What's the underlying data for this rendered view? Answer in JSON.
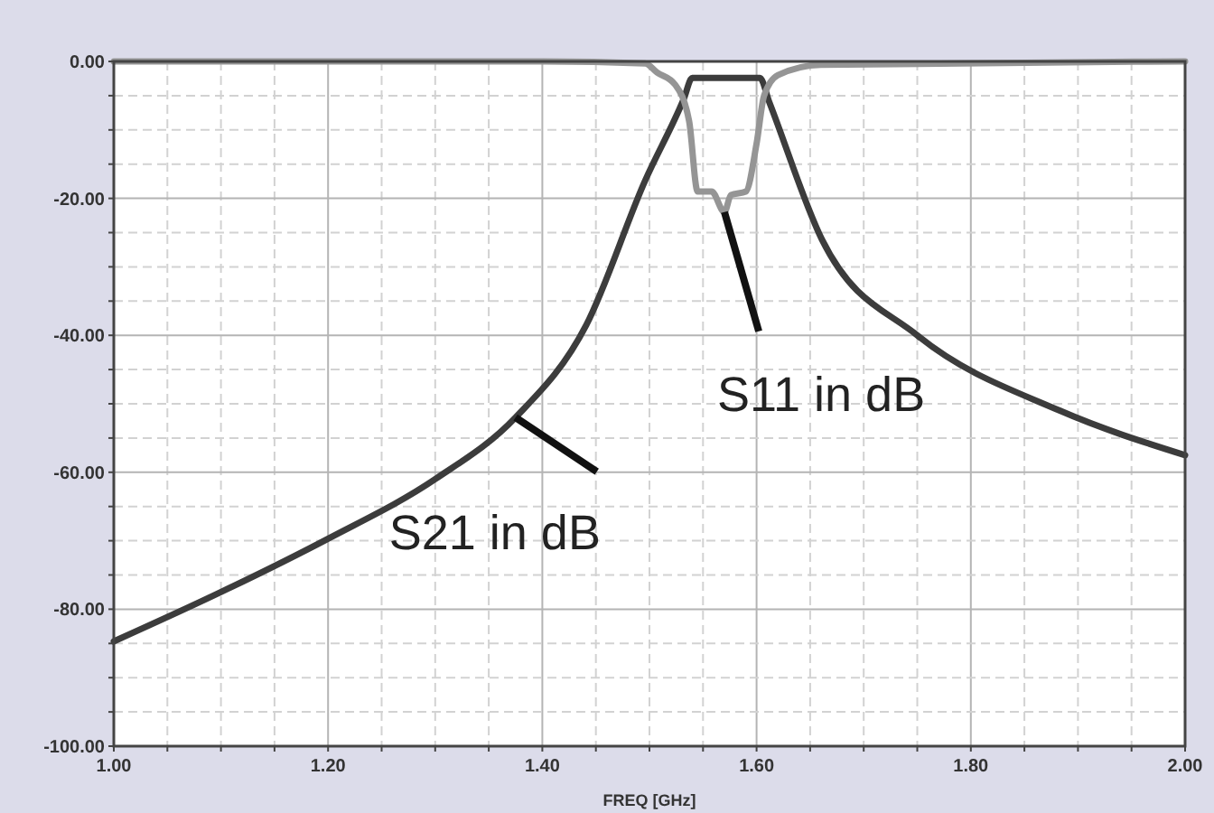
{
  "chart_data": {
    "type": "line",
    "xlabel": "FREQ [GHz]",
    "xlim": [
      1,
      2
    ],
    "ylim": [
      -100,
      0
    ],
    "xticks": [
      {
        "value": 1,
        "label": "1.00"
      },
      {
        "value": 1.05,
        "label": null
      },
      {
        "value": 1.1,
        "label": null
      },
      {
        "value": 1.15,
        "label": null
      },
      {
        "value": 1.2,
        "label": "1.20"
      },
      {
        "value": 1.25,
        "label": null
      },
      {
        "value": 1.3,
        "label": null
      },
      {
        "value": 1.35,
        "label": null
      },
      {
        "value": 1.4,
        "label": "1.40"
      },
      {
        "value": 1.45,
        "label": null
      },
      {
        "value": 1.5,
        "label": null
      },
      {
        "value": 1.55,
        "label": null
      },
      {
        "value": 1.6,
        "label": "1.60"
      },
      {
        "value": 1.65,
        "label": null
      },
      {
        "value": 1.7,
        "label": null
      },
      {
        "value": 1.75,
        "label": null
      },
      {
        "value": 1.8,
        "label": "1.80"
      },
      {
        "value": 1.85,
        "label": null
      },
      {
        "value": 1.9,
        "label": null
      },
      {
        "value": 1.95,
        "label": null
      },
      {
        "value": 2,
        "label": "2.00"
      }
    ],
    "yticks": [
      {
        "value": -100,
        "label": "-100.00"
      },
      {
        "value": -95,
        "label": null
      },
      {
        "value": -90,
        "label": null
      },
      {
        "value": -85,
        "label": null
      },
      {
        "value": -80,
        "label": "-80.00"
      },
      {
        "value": -75,
        "label": null
      },
      {
        "value": -70,
        "label": null
      },
      {
        "value": -65,
        "label": null
      },
      {
        "value": -60,
        "label": "-60.00"
      },
      {
        "value": -55,
        "label": null
      },
      {
        "value": -50,
        "label": null
      },
      {
        "value": -45,
        "label": null
      },
      {
        "value": -40,
        "label": "-40.00"
      },
      {
        "value": -35,
        "label": null
      },
      {
        "value": -30,
        "label": null
      },
      {
        "value": -25,
        "label": null
      },
      {
        "value": -20,
        "label": "-20.00"
      },
      {
        "value": -15,
        "label": null
      },
      {
        "value": -10,
        "label": null
      },
      {
        "value": -5,
        "label": null
      },
      {
        "value": 0,
        "label": "0.00"
      }
    ],
    "grid": true,
    "line_style": "solid",
    "marker": "none",
    "series": [
      {
        "color": "#3c3c3c",
        "x": [
          1,
          1.1,
          1.2,
          1.3,
          1.375,
          1.441,
          1.496,
          1.532,
          1.54,
          1.57,
          1.603,
          1.612,
          1.661,
          1.75,
          1.883,
          2
        ],
        "values": [
          -84.7,
          -77.5,
          -69.7,
          -61,
          -52,
          -38.5,
          -17.4,
          -5.5,
          -2.4,
          -2.4,
          -2.4,
          -6,
          -26,
          -40,
          -51,
          -57.5
        ]
      },
      {
        "color": "#959595",
        "x": [
          1,
          1.4,
          1.496,
          1.507,
          1.524,
          1.537,
          1.545,
          1.558,
          1.57,
          1.576,
          1.59,
          1.6,
          1.607,
          1.62,
          1.66,
          2
        ],
        "values": [
          0,
          0,
          -0.3,
          -1.6,
          -3.4,
          -8.7,
          -19,
          -19,
          -22,
          -19.5,
          -19,
          -12,
          -5,
          -2,
          -0.5,
          0
        ]
      }
    ],
    "annotations": [
      {
        "text": "S11 in dB",
        "x": 1.57,
        "y": -22
      },
      {
        "text": "S21 in dB",
        "x": 1.375,
        "y": -52
      }
    ]
  }
}
